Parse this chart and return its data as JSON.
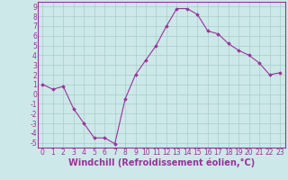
{
  "x": [
    0,
    1,
    2,
    3,
    4,
    5,
    6,
    7,
    8,
    9,
    10,
    11,
    12,
    13,
    14,
    15,
    16,
    17,
    18,
    19,
    20,
    21,
    22,
    23
  ],
  "y": [
    1.0,
    0.5,
    0.8,
    -1.5,
    -3.0,
    -4.5,
    -4.5,
    -5.1,
    -0.5,
    2.0,
    3.5,
    5.0,
    7.0,
    8.8,
    8.8,
    8.2,
    6.5,
    6.2,
    5.2,
    4.5,
    4.0,
    3.2,
    2.0,
    2.2
  ],
  "xlabel": "Windchill (Refroidissement éolien,°C)",
  "line_color": "#993399",
  "marker": "D",
  "marker_size": 1.8,
  "bg_color": "#cce8e8",
  "grid_color": "#aacccc",
  "xlim": [
    -0.5,
    23.5
  ],
  "ylim": [
    -5.5,
    9.5
  ],
  "xticks": [
    0,
    1,
    2,
    3,
    4,
    5,
    6,
    7,
    8,
    9,
    10,
    11,
    12,
    13,
    14,
    15,
    16,
    17,
    18,
    19,
    20,
    21,
    22,
    23
  ],
  "yticks": [
    -5,
    -4,
    -3,
    -2,
    -1,
    0,
    1,
    2,
    3,
    4,
    5,
    6,
    7,
    8,
    9
  ],
  "tick_fontsize": 5.5,
  "xlabel_fontsize": 7
}
